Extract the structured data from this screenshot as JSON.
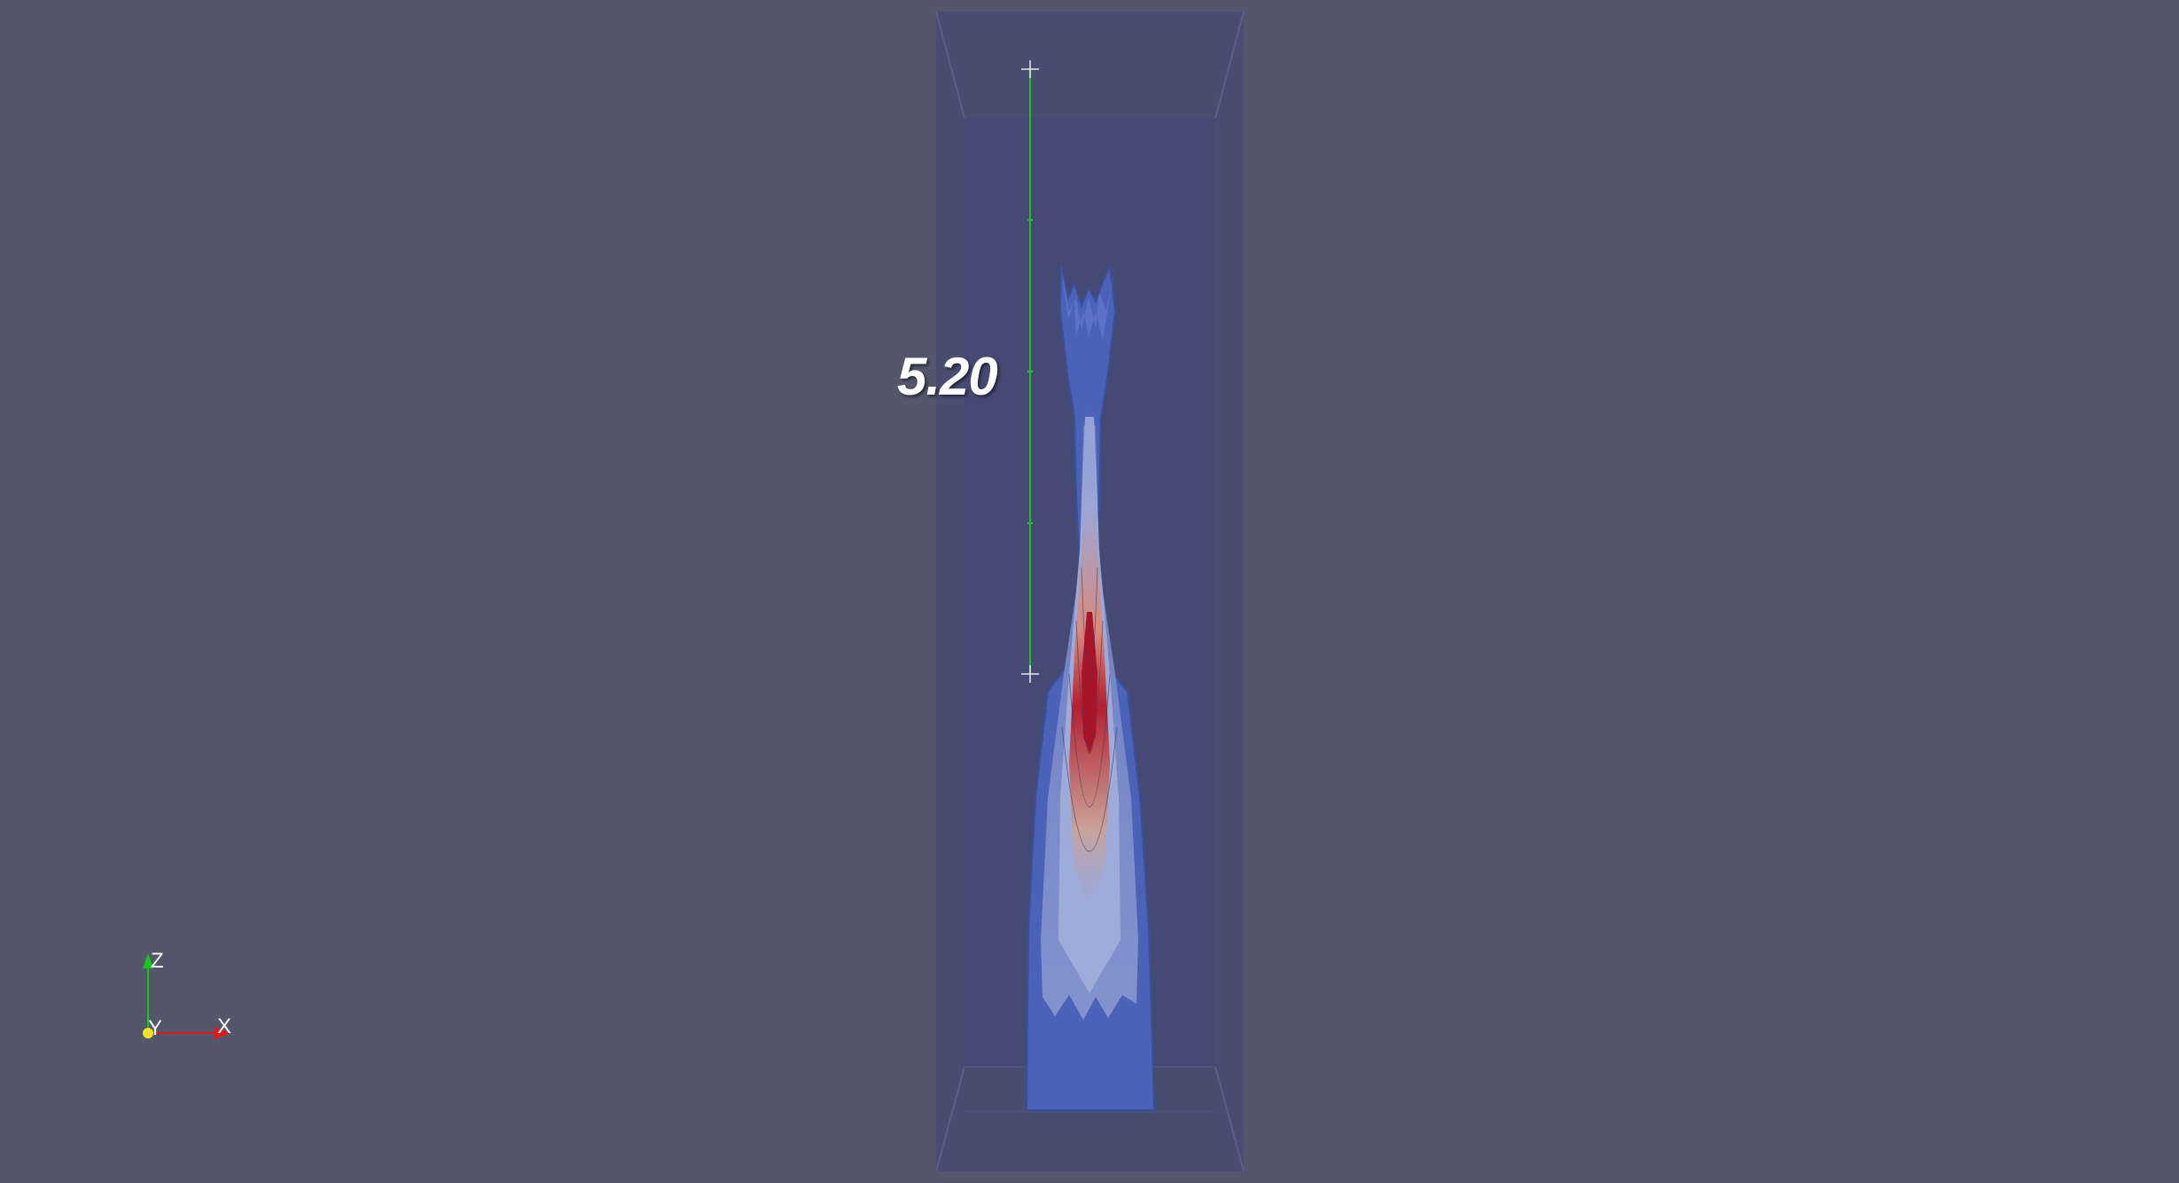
{
  "ruler": {
    "label": "5.20"
  },
  "orientation_axes": {
    "x_label": "X",
    "y_label": "Y",
    "z_label": "Z",
    "x_color": "#e01818",
    "y_color": "#f2e21a",
    "z_color": "#18c818"
  },
  "colors": {
    "background": "#52576b",
    "domain_box": "#474c70",
    "plume_outer": "#4a62b8",
    "plume_core": "#a8142a",
    "ruler_line": "#1fbf1f"
  }
}
